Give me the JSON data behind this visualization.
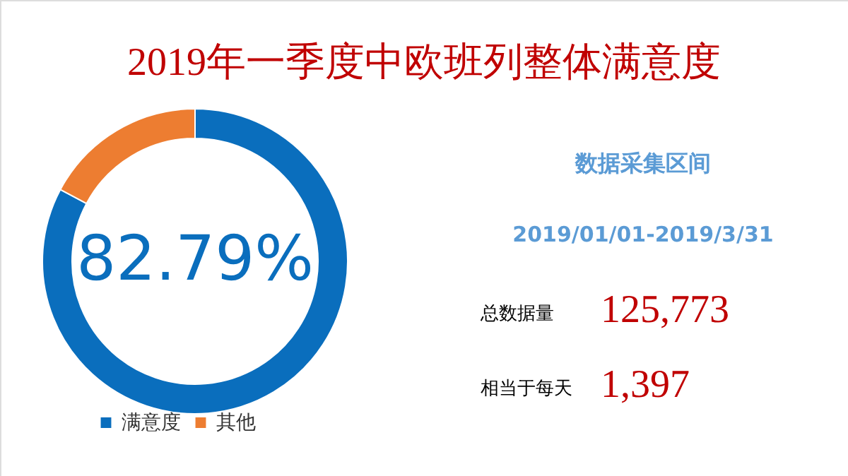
{
  "chart_data": {
    "type": "donut",
    "title": "2019年一季度中欧班列整体满意度",
    "categories": [
      "满意度",
      "其他"
    ],
    "values": [
      82.79,
      17.21
    ],
    "colors": [
      "#0a6ebd",
      "#ed7d31"
    ],
    "value_labels": [
      "82.79%",
      null
    ],
    "legend": "bottom",
    "annotations": [
      "数据采集区间",
      "2019/01/01-2019/3/31",
      "总数据量",
      "125,773",
      "相当于每天",
      "1,397"
    ]
  }
}
